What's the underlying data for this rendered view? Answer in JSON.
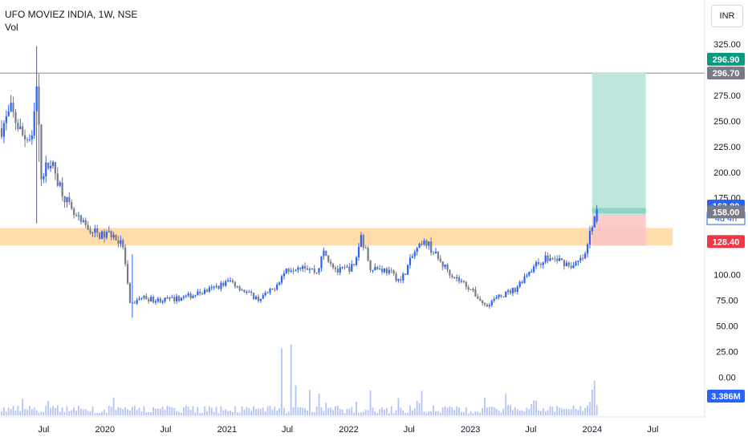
{
  "header": {
    "symbol_title": "UFO MOVIEZ INDIA, 1W, NSE",
    "volume_label": "Vol",
    "currency": "INR"
  },
  "colors": {
    "up": "#2962ff",
    "down": "#787b86",
    "zone": "#ffd69a",
    "target": "#bfe6dd",
    "stop": "#fbc4c4",
    "last_price_bg": "#2962ff",
    "target_badge": "#089981",
    "stop_badge": "#f23645",
    "level_badge": "#787b86",
    "volume_bar": "#9fb4f5"
  },
  "chart_data": {
    "type": "candlestick",
    "title": "UFO MOVIEZ INDIA, 1W, NSE",
    "y_axis": {
      "ticks": [
        "325.00",
        "275.00",
        "250.00",
        "225.00",
        "200.00",
        "175.00",
        "100.00",
        "75.00",
        "50.00",
        "25.00",
        "0.00"
      ],
      "range": [
        -30,
        335
      ]
    },
    "x_axis": {
      "labels": [
        "Jul",
        "2020",
        "Jul",
        "2021",
        "Jul",
        "2022",
        "Jul",
        "2023",
        "Jul",
        "2024",
        "Jul"
      ],
      "range": [
        "2019-02-25",
        "2024-08-05"
      ]
    },
    "anchors": [
      [
        "2019-02-25",
        243
      ],
      [
        "2019-03-25",
        260
      ],
      [
        "2019-04-29",
        236
      ],
      [
        "2019-05-27",
        230
      ],
      [
        "2019-06-10",
        282
      ],
      [
        "2019-06-24",
        198
      ],
      [
        "2019-07-22",
        210
      ],
      [
        "2019-08-26",
        182
      ],
      [
        "2019-09-23",
        160
      ],
      [
        "2019-10-21",
        150
      ],
      [
        "2019-11-25",
        142
      ],
      [
        "2019-12-23",
        138
      ],
      [
        "2020-01-20",
        140
      ],
      [
        "2020-02-24",
        128
      ],
      [
        "2020-03-16",
        70
      ],
      [
        "2020-04-20",
        78
      ],
      [
        "2020-06-01",
        75
      ],
      [
        "2020-07-27",
        76
      ],
      [
        "2020-09-21",
        80
      ],
      [
        "2020-11-16",
        86
      ],
      [
        "2021-01-11",
        94
      ],
      [
        "2021-02-22",
        84
      ],
      [
        "2021-04-05",
        76
      ],
      [
        "2021-05-17",
        85
      ],
      [
        "2021-06-28",
        105
      ],
      [
        "2021-08-16",
        110
      ],
      [
        "2021-09-27",
        102
      ],
      [
        "2021-10-18",
        122
      ],
      [
        "2021-11-29",
        103
      ],
      [
        "2022-01-17",
        108
      ],
      [
        "2022-02-07",
        138
      ],
      [
        "2022-03-07",
        108
      ],
      [
        "2022-04-25",
        104
      ],
      [
        "2022-06-06",
        94
      ],
      [
        "2022-07-18",
        122
      ],
      [
        "2022-08-22",
        132
      ],
      [
        "2022-10-03",
        112
      ],
      [
        "2022-11-14",
        98
      ],
      [
        "2022-12-26",
        88
      ],
      [
        "2023-02-13",
        70
      ],
      [
        "2023-03-27",
        78
      ],
      [
        "2023-05-15",
        86
      ],
      [
        "2023-06-26",
        104
      ],
      [
        "2023-08-14",
        116
      ],
      [
        "2023-09-25",
        114
      ],
      [
        "2023-11-06",
        108
      ],
      [
        "2023-12-11",
        118
      ],
      [
        "2024-01-01",
        150
      ],
      [
        "2024-01-15",
        163.8
      ]
    ],
    "events": [
      [
        "2019-06-10",
        323,
        150
      ],
      [
        "2019-06-17",
        296,
        210
      ],
      [
        "2020-03-23",
        120,
        58
      ]
    ],
    "volume_spikes": [
      [
        "2021-06-14",
        58
      ],
      [
        "2021-07-12",
        61
      ],
      [
        "2021-07-26",
        26
      ],
      [
        "2021-09-06",
        22
      ],
      [
        "2021-10-04",
        19
      ],
      [
        "2022-01-24",
        12
      ],
      [
        "2023-07-03",
        10
      ],
      [
        "2023-12-25",
        12
      ],
      [
        "2024-01-08",
        30
      ],
      [
        "2024-01-15",
        9
      ]
    ],
    "resistance_zone": {
      "from": 128.4,
      "to": 145.5
    },
    "horizontal_line": 296.7,
    "position": {
      "entry": 158.0,
      "target": 296.9,
      "stop": 128.4,
      "start": "2024-01-01",
      "end": "2024-06-10",
      "current_price": 163.8,
      "current_band": [
        159.7,
        165.0
      ]
    },
    "price_labels": {
      "target": "296.90",
      "line": "296.70",
      "current": "163.80",
      "countdown": "4d 4h",
      "entry": "158.00",
      "stop": "128.40",
      "volume": "3.386M"
    }
  }
}
